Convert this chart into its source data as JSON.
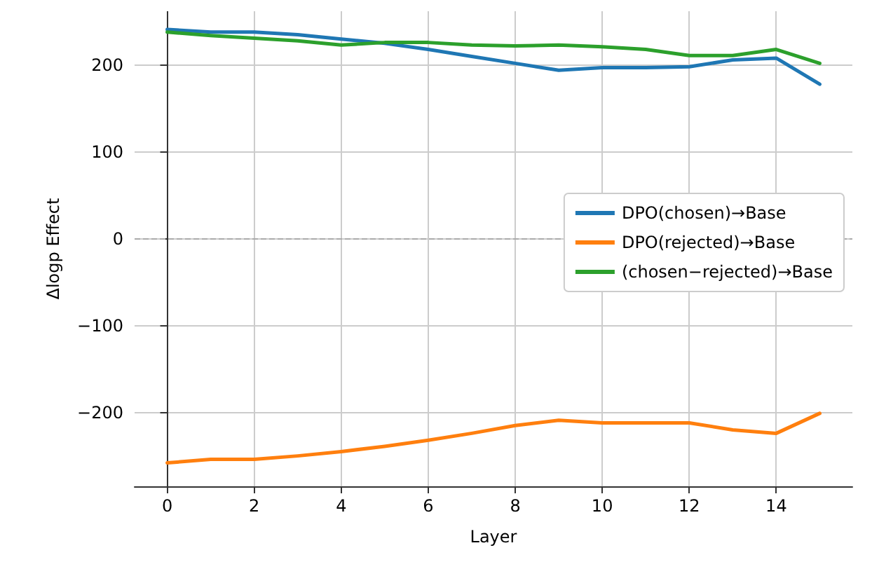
{
  "chart_data": {
    "type": "line",
    "xlabel": "Layer",
    "ylabel": "Δlogp Effect",
    "x": [
      0,
      1,
      2,
      3,
      4,
      5,
      6,
      7,
      8,
      9,
      10,
      11,
      12,
      13,
      14,
      15
    ],
    "series": [
      {
        "name": "DPO(chosen)→Base",
        "color": "#1f77b4",
        "values": [
          241,
          238,
          238,
          235,
          230,
          225,
          218,
          210,
          202,
          194,
          197,
          197,
          198,
          206,
          208,
          178
        ]
      },
      {
        "name": "DPO(rejected)→Base",
        "color": "#ff7f0e",
        "values": [
          -258,
          -254,
          -254,
          -250,
          -245,
          -239,
          -232,
          -224,
          -215,
          -209,
          -212,
          -212,
          -212,
          -220,
          -224,
          -201
        ]
      },
      {
        "name": "(chosen−rejected)→Base",
        "color": "#2ca02c",
        "values": [
          238,
          234,
          231,
          228,
          223,
          226,
          226,
          223,
          222,
          223,
          221,
          218,
          211,
          211,
          218,
          202
        ]
      }
    ],
    "xlim": [
      -0.75,
      15.75
    ],
    "xticks": [
      0,
      2,
      4,
      6,
      8,
      10,
      12,
      14
    ],
    "ylim": [
      -285,
      262
    ],
    "yticks": [
      -200,
      -100,
      0,
      100,
      200
    ],
    "ref_lines": [
      {
        "axis": "y",
        "value": 0,
        "color": "#aaaaaa",
        "line_style": "dashed"
      }
    ],
    "grid": true,
    "legend": "right",
    "marker": "none",
    "line_style": "solid"
  }
}
